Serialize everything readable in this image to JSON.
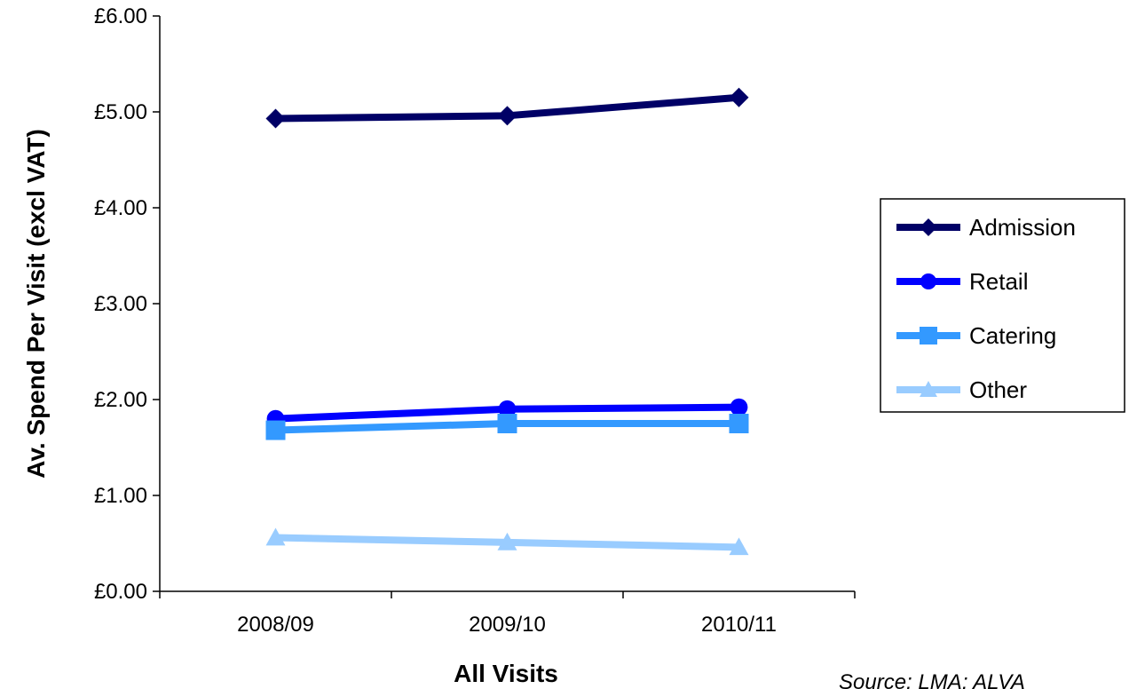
{
  "chart_data": {
    "type": "line",
    "title": "",
    "xlabel": "All Visits",
    "ylabel": "Av. Spend Per Visit (excl VAT)",
    "categories": [
      "2008/09",
      "2009/10",
      "2010/11"
    ],
    "ylim": [
      0,
      6
    ],
    "yticks": [
      "£0.00",
      "£1.00",
      "£2.00",
      "£3.00",
      "£4.00",
      "£5.00",
      "£6.00"
    ],
    "grid": false,
    "legend_position": "right",
    "source": "Source: LMA; ALVA",
    "series": [
      {
        "name": "Admission",
        "values": [
          4.93,
          4.96,
          5.15
        ],
        "color": "#000066",
        "marker": "diamond"
      },
      {
        "name": "Retail",
        "values": [
          1.8,
          1.9,
          1.92
        ],
        "color": "#0000ff",
        "marker": "circle"
      },
      {
        "name": "Catering",
        "values": [
          1.68,
          1.75,
          1.75
        ],
        "color": "#3399ff",
        "marker": "square"
      },
      {
        "name": "Other",
        "values": [
          0.56,
          0.51,
          0.46
        ],
        "color": "#99ccff",
        "marker": "triangle"
      }
    ]
  }
}
